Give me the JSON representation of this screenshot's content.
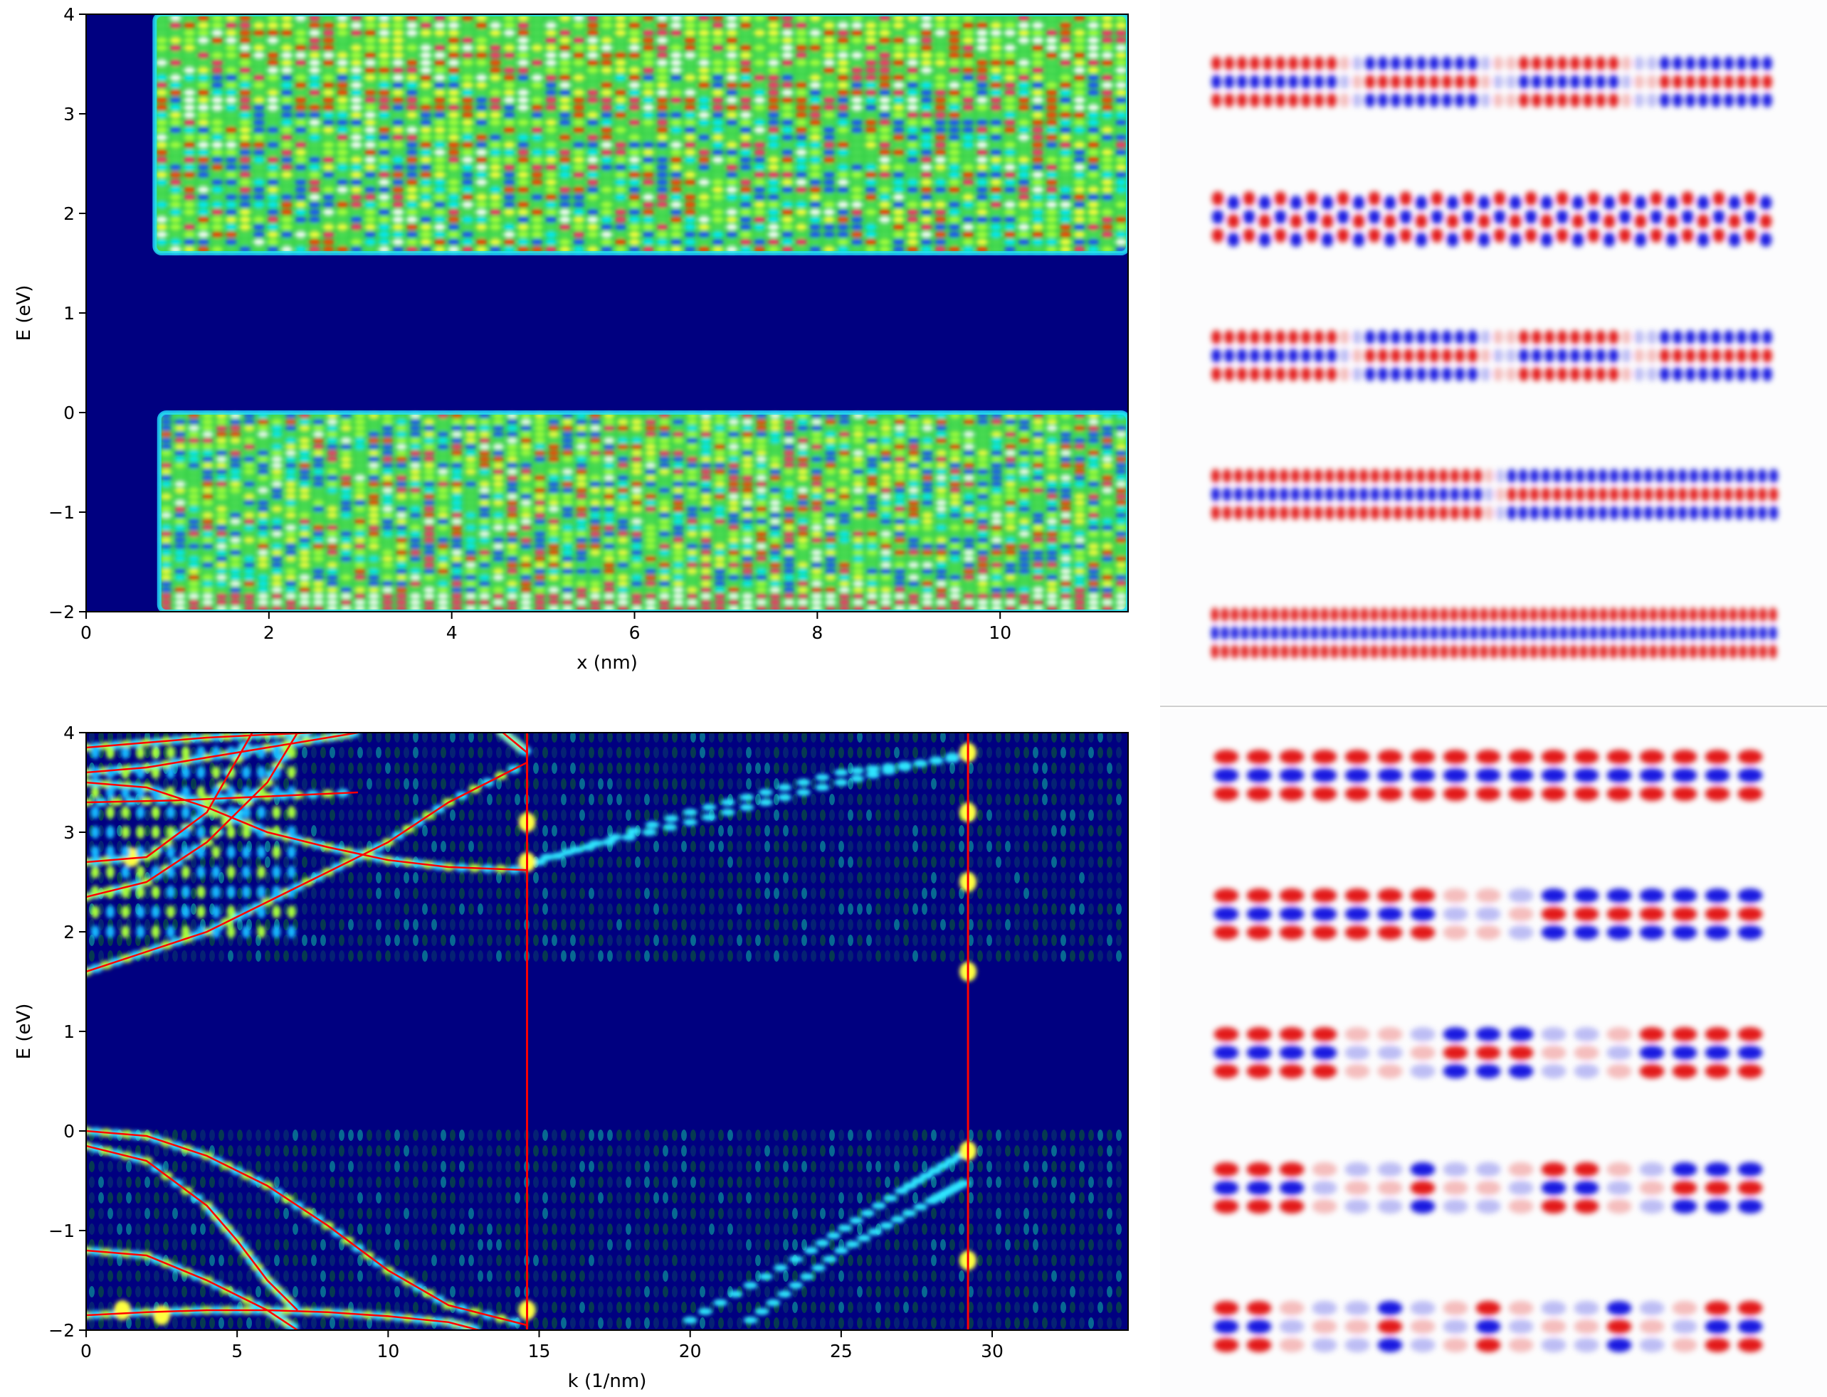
{
  "chart_data": [
    {
      "type": "heatmap",
      "colormap": "jet-like (navy background, cyan/green/yellow/red/white intensity)",
      "xlabel": "x (nm)",
      "ylabel": "E (eV)",
      "xlim": [
        0,
        11.4
      ],
      "ylim": [
        -2,
        4
      ],
      "xticks": [
        {
          "v": 0,
          "t": "0"
        },
        {
          "v": 2,
          "t": "2"
        },
        {
          "v": 4,
          "t": "4"
        },
        {
          "v": 6,
          "t": "6"
        },
        {
          "v": 8,
          "t": "8"
        },
        {
          "v": 10,
          "t": "10"
        }
      ],
      "yticks": [
        {
          "v": 4,
          "t": "4"
        },
        {
          "v": 3,
          "t": "3"
        },
        {
          "v": 2,
          "t": "2"
        },
        {
          "v": 1,
          "t": "1"
        },
        {
          "v": 0,
          "t": "0"
        },
        {
          "v": -1,
          "t": "−1"
        },
        {
          "v": -2,
          "t": "−2"
        }
      ],
      "bands": [
        {
          "name": "conduction",
          "x": [
            0.75,
            11.4
          ],
          "e": [
            1.6,
            4.0
          ]
        },
        {
          "name": "valence",
          "x": [
            0.8,
            11.4
          ],
          "e": [
            -2.0,
            0.0
          ]
        }
      ],
      "gap": [
        0.0,
        1.6
      ]
    },
    {
      "type": "heatmap",
      "colormap": "jet-like with red band-structure lines overlaid",
      "xlabel": "k (1/nm)",
      "ylabel": "E (eV)",
      "xlim": [
        0,
        34.5
      ],
      "ylim": [
        -2,
        4
      ],
      "xticks": [
        {
          "v": 0,
          "t": "0"
        },
        {
          "v": 5,
          "t": "5"
        },
        {
          "v": 10,
          "t": "10"
        },
        {
          "v": 15,
          "t": "15"
        },
        {
          "v": 20,
          "t": "20"
        },
        {
          "v": 25,
          "t": "25"
        },
        {
          "v": 30,
          "t": "30"
        }
      ],
      "yticks": [
        {
          "v": 4,
          "t": "4"
        },
        {
          "v": 3,
          "t": "3"
        },
        {
          "v": 2,
          "t": "2"
        },
        {
          "v": 1,
          "t": "1"
        },
        {
          "v": 0,
          "t": "0"
        },
        {
          "v": -1,
          "t": "−1"
        },
        {
          "v": -2,
          "t": "−2"
        }
      ],
      "vertical_lines_k": [
        14.6,
        29.2
      ],
      "band_curves": [
        {
          "k": [
            0,
            2,
            4,
            6,
            8,
            10,
            12,
            14.6
          ],
          "e": [
            1.6,
            1.8,
            2.0,
            2.3,
            2.6,
            2.9,
            3.3,
            3.7
          ]
        },
        {
          "k": [
            0,
            2,
            4,
            6,
            7
          ],
          "e": [
            2.35,
            2.5,
            2.9,
            3.5,
            4.0
          ]
        },
        {
          "k": [
            0,
            2,
            4,
            5.5
          ],
          "e": [
            2.7,
            2.75,
            3.2,
            4.0
          ]
        },
        {
          "k": [
            0,
            2,
            4,
            6,
            8,
            10,
            12,
            14.6
          ],
          "e": [
            3.5,
            3.45,
            3.25,
            3.0,
            2.85,
            2.72,
            2.65,
            2.62
          ]
        },
        {
          "k": [
            0,
            2,
            4,
            6,
            8,
            9
          ],
          "e": [
            3.6,
            3.65,
            3.75,
            3.85,
            3.95,
            4.0
          ]
        },
        {
          "k": [
            0,
            2,
            4,
            6,
            7.5
          ],
          "e": [
            3.85,
            3.9,
            3.95,
            3.98,
            4.0
          ]
        },
        {
          "k": [
            0,
            3,
            6,
            9
          ],
          "e": [
            3.3,
            3.32,
            3.36,
            3.4
          ]
        },
        {
          "k": [
            13.8,
            14.2,
            14.6
          ],
          "e": [
            4.0,
            3.9,
            3.8
          ]
        },
        {
          "k": [
            0,
            2,
            4,
            6,
            8,
            10,
            12,
            14.6
          ],
          "e": [
            0.0,
            -0.05,
            -0.25,
            -0.55,
            -0.95,
            -1.4,
            -1.75,
            -1.95
          ]
        },
        {
          "k": [
            0,
            2,
            4,
            5,
            6,
            7
          ],
          "e": [
            -0.15,
            -0.3,
            -0.75,
            -1.1,
            -1.5,
            -1.8
          ]
        },
        {
          "k": [
            0,
            2,
            4,
            6,
            7
          ],
          "e": [
            -1.2,
            -1.25,
            -1.5,
            -1.8,
            -2.0
          ]
        },
        {
          "k": [
            0,
            2,
            4,
            6,
            8,
            10,
            12,
            13
          ],
          "e": [
            -1.85,
            -1.82,
            -1.8,
            -1.8,
            -1.82,
            -1.86,
            -1.92,
            -2.0
          ]
        }
      ]
    }
  ],
  "wavefunction_panels": {
    "top": [
      {
        "pattern": "dense-with-3-nodes"
      },
      {
        "pattern": "zigzag-uniform"
      },
      {
        "pattern": "dense-with-3-nodes"
      },
      {
        "pattern": "dense-with-1-node"
      },
      {
        "pattern": "dense-uniform"
      }
    ],
    "bottom": [
      {
        "pattern": "slow-uniform"
      },
      {
        "pattern": "slow-1-node"
      },
      {
        "pattern": "slow-2-nodes"
      },
      {
        "pattern": "slow-3-nodes"
      },
      {
        "pattern": "slow-4-nodes"
      }
    ]
  },
  "colors": {
    "background_navy": "#000080",
    "band_line_red": "#ff0000",
    "wave_red": "#e00000",
    "wave_blue": "#0000dd",
    "panel_divider": "#cfcfcf"
  }
}
